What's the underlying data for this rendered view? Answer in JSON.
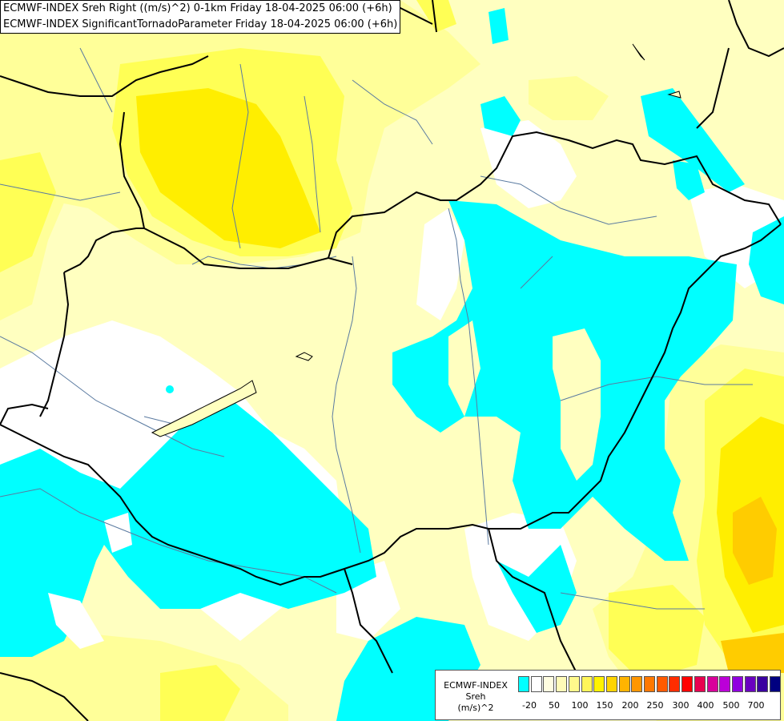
{
  "title": {
    "line1": "ECMWF-INDEX Sreh Right ((m/s)^2) 0-1km Friday 18-04-2025 06:00 (+6h)",
    "line2": "ECMWF-INDEX SignificantTornadoParameter Friday 18-04-2025 06:00 (+6h)"
  },
  "legend": {
    "label_line1": "ECMWF-INDEX",
    "label_line2": "Sreh",
    "label_line3": "(m/s)^2",
    "swatch_colors": [
      "#00ffff",
      "#ffffff",
      "#fffde0",
      "#fffbb8",
      "#fff98c",
      "#fff55a",
      "#fff200",
      "#ffd400",
      "#ffb400",
      "#ff9600",
      "#ff7800",
      "#ff5a00",
      "#ff2d00",
      "#ff0000",
      "#e80050",
      "#d8009a",
      "#bb00d8",
      "#9000e0",
      "#6a00c0",
      "#3a00a0",
      "#000080"
    ],
    "ticks": [
      "-20",
      "50",
      "100",
      "150",
      "200",
      "250",
      "300",
      "400",
      "500",
      "700"
    ]
  },
  "colors": {
    "cyan": "#00ffff",
    "white": "#ffffff",
    "pale_yellow": "#ffffc0",
    "light_yellow": "#ffff99",
    "yellow": "#ffff44",
    "bright_yellow": "#ffee00",
    "orange": "#ffcc00",
    "border": "#000000",
    "river": "#5a7aa0"
  }
}
